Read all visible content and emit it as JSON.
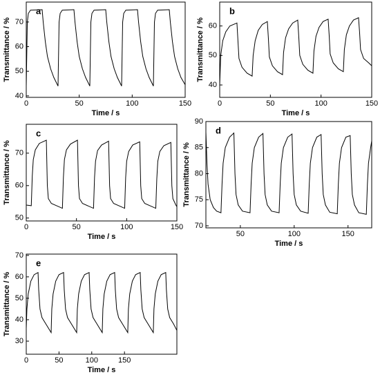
{
  "chart_data": [
    {
      "type": "line",
      "label": "a",
      "xlabel": "Time / s",
      "ylabel": "Transmittance / %",
      "color": "#000000",
      "xlim": [
        0,
        150
      ],
      "xticks": [
        0,
        50,
        100,
        150
      ],
      "ylim": [
        39.4,
        78.1
      ],
      "yticks": [
        40,
        50,
        60,
        70
      ],
      "x": [
        0,
        1,
        2,
        4,
        15,
        16,
        18,
        20,
        23,
        26,
        30,
        31,
        32,
        34,
        45,
        46,
        48,
        50,
        53,
        56,
        60,
        61,
        62,
        64,
        75,
        76,
        78,
        80,
        83,
        86,
        90,
        91,
        92,
        94,
        105,
        106,
        108,
        110,
        113,
        116,
        120,
        121,
        122,
        124,
        135,
        136,
        138,
        140,
        143,
        146,
        150
      ],
      "values": [
        44,
        70,
        73.5,
        74.8,
        75,
        70,
        62,
        56,
        51,
        47.5,
        44,
        70,
        73.5,
        74.8,
        75,
        70,
        62,
        56,
        51,
        47.5,
        44,
        70,
        73.5,
        74.8,
        75,
        70,
        62,
        56,
        51,
        47.5,
        44,
        70,
        73.5,
        74.8,
        75,
        70,
        62,
        56,
        51,
        47.5,
        44,
        70,
        73.5,
        74.8,
        75,
        70,
        62,
        56,
        51,
        47.5,
        44.5
      ]
    },
    {
      "type": "line",
      "label": "b",
      "xlabel": "Time / s",
      "ylabel": "Transmittance / %",
      "color": "#000000",
      "xlim": [
        0,
        150
      ],
      "xticks": [
        0,
        50,
        100,
        150
      ],
      "ylim": [
        35.8,
        68.1
      ],
      "yticks": [
        40,
        50,
        60
      ],
      "x": [
        0,
        1,
        3,
        6,
        10,
        17,
        18,
        19,
        22,
        27,
        32,
        33,
        35,
        38,
        42,
        47,
        48,
        49,
        52,
        57,
        62,
        63,
        65,
        68,
        72,
        77,
        78,
        79,
        82,
        87,
        92,
        93,
        95,
        98,
        102,
        107,
        108,
        109,
        112,
        117,
        122,
        123,
        125,
        128,
        132,
        137,
        138,
        139,
        142,
        147,
        150
      ],
      "values": [
        40,
        50,
        55,
        58,
        60,
        61,
        55,
        49,
        46,
        44,
        43,
        50,
        55,
        58.5,
        60.5,
        61.5,
        56,
        49.5,
        46.5,
        44.5,
        43.5,
        51,
        56,
        59,
        61,
        62,
        56.5,
        50,
        47,
        45,
        44,
        51.5,
        56.5,
        59.5,
        61.5,
        62.3,
        57,
        50.5,
        47.5,
        45.5,
        44.5,
        52,
        57,
        60,
        62,
        62.8,
        58,
        52,
        49,
        47.5,
        46.5
      ]
    },
    {
      "type": "line",
      "label": "c",
      "xlabel": "Time / s",
      "ylabel": "Transmittance / %",
      "color": "#000000",
      "xlim": [
        0,
        150
      ],
      "xticks": [
        0,
        50,
        100,
        150
      ],
      "ylim": [
        49.1,
        78.9
      ],
      "yticks": [
        50,
        60,
        70
      ],
      "x": [
        0,
        5,
        6,
        7,
        9,
        13,
        20,
        21,
        22,
        25,
        36,
        37,
        38,
        40,
        44,
        51,
        52,
        53,
        56,
        67,
        68,
        69,
        71,
        75,
        82,
        83,
        84,
        87,
        98,
        99,
        100,
        102,
        106,
        113,
        114,
        115,
        118,
        129,
        130,
        131,
        133,
        137,
        144,
        145,
        146,
        149,
        150
      ],
      "values": [
        54,
        53.8,
        63,
        68,
        71,
        73,
        74,
        60,
        56,
        54.5,
        53,
        62.5,
        68,
        71,
        72.8,
        74,
        60,
        56,
        54.5,
        53,
        62.5,
        67.5,
        70.8,
        72.5,
        73.7,
        60,
        56,
        54.5,
        53,
        62.5,
        67.5,
        70.5,
        72.5,
        73.5,
        60,
        56,
        54.5,
        53,
        62,
        67.5,
        70.5,
        72.3,
        73.3,
        60,
        56,
        54,
        53.5
      ]
    },
    {
      "type": "line",
      "label": "d",
      "xlabel": "Time / s",
      "ylabel": "Transmittance / %",
      "color": "#000000",
      "xlim": [
        18,
        172
      ],
      "xticks": [
        50,
        100,
        150
      ],
      "ylim": [
        69.6,
        90
      ],
      "yticks": [
        70,
        75,
        80,
        85,
        90
      ],
      "x": [
        18,
        19,
        20,
        22,
        25,
        28,
        32,
        33,
        34,
        36,
        40,
        44,
        45,
        46,
        48,
        52,
        59,
        60,
        61,
        63,
        67,
        71,
        72,
        73,
        75,
        79,
        86,
        87,
        88,
        90,
        94,
        98,
        99,
        100,
        102,
        106,
        113,
        114,
        115,
        117,
        121,
        125,
        126,
        127,
        129,
        133,
        140,
        141,
        142,
        144,
        148,
        152,
        153,
        154,
        156,
        160,
        167,
        168,
        169,
        171,
        172
      ],
      "values": [
        88,
        82,
        78,
        75,
        73.5,
        72.8,
        72.5,
        78,
        82,
        85,
        87,
        87.8,
        80,
        76,
        74,
        72.8,
        72.5,
        78,
        82,
        85,
        87,
        87.7,
        80,
        76,
        74,
        72.8,
        72.5,
        78,
        82,
        85,
        87,
        87.6,
        80,
        76,
        74,
        72.8,
        72.4,
        78,
        82,
        85,
        87,
        87.5,
        80,
        76,
        74,
        72.6,
        72.3,
        78,
        82,
        85,
        87,
        87.3,
        80,
        76,
        74,
        72.5,
        72.2,
        78,
        82,
        85,
        86.3
      ]
    },
    {
      "type": "line",
      "label": "e",
      "xlabel": "Time / s",
      "ylabel": "Transmittance / %",
      "color": "#000000",
      "xlim": [
        0,
        230
      ],
      "xticks": [
        0,
        50,
        100,
        150
      ],
      "ylim": [
        23.9,
        70.6
      ],
      "yticks": [
        30,
        40,
        50,
        60,
        70
      ],
      "x": [
        0,
        1,
        3,
        7,
        12,
        18,
        19,
        21,
        24,
        30,
        38,
        39,
        41,
        45,
        50,
        57,
        58,
        60,
        63,
        69,
        77,
        78,
        80,
        84,
        89,
        96,
        97,
        99,
        102,
        108,
        116,
        117,
        119,
        123,
        128,
        135,
        136,
        138,
        141,
        147,
        155,
        156,
        158,
        162,
        167,
        174,
        175,
        177,
        180,
        186,
        194,
        195,
        197,
        201,
        206,
        213,
        214,
        216,
        219,
        225,
        230
      ],
      "values": [
        36,
        45,
        52,
        58,
        61,
        62,
        54,
        45,
        41,
        38,
        34,
        45,
        52,
        58,
        61,
        62,
        54,
        45,
        41,
        38,
        34,
        45,
        52,
        58,
        61,
        62,
        54,
        45,
        41,
        38,
        34,
        45,
        52,
        58,
        61,
        62,
        54,
        45,
        41,
        38,
        34,
        45,
        52,
        58,
        61,
        62,
        54,
        45,
        41,
        38,
        34,
        45,
        52,
        58,
        61,
        62,
        54,
        45,
        41,
        38,
        35
      ]
    }
  ]
}
